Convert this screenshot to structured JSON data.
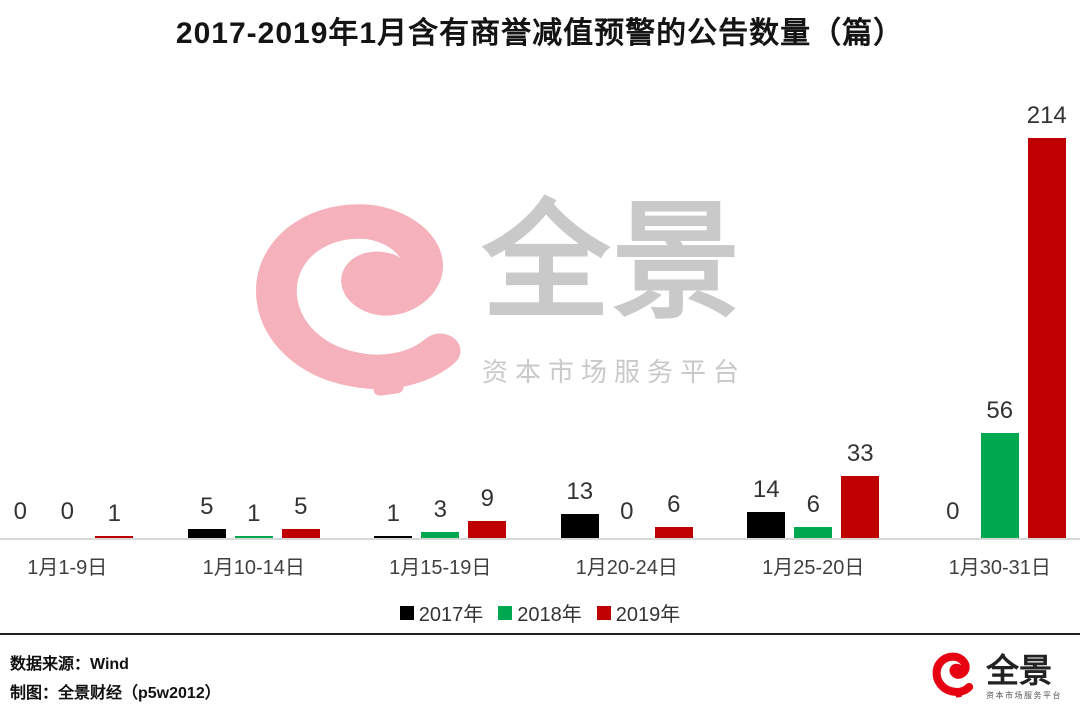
{
  "title": "2017-2019年1月含有商誉减值预警的公告数量（篇）",
  "watermark": {
    "brand": "全景",
    "tagline": "资本市场服务平台"
  },
  "chart_data": {
    "type": "bar",
    "title": "2017-2019年1月含有商誉减值预警的公告数量（篇）",
    "categories": [
      "1月1-9日",
      "1月10-14日",
      "1月15-19日",
      "1月20-24日",
      "1月25-20日",
      "1月30-31日"
    ],
    "series": [
      {
        "name": "2017年",
        "color": "#000000",
        "values": [
          0,
          5,
          1,
          13,
          14,
          0
        ]
      },
      {
        "name": "2018年",
        "color": "#00A850",
        "values": [
          0,
          1,
          3,
          0,
          6,
          56
        ]
      },
      {
        "name": "2019年",
        "color": "#C00000",
        "values": [
          1,
          5,
          9,
          6,
          33,
          214
        ]
      }
    ],
    "xlabel": "",
    "ylabel": "",
    "ylim": [
      0,
      240
    ],
    "grid": false,
    "axis_shown": "x-baseline-only",
    "legend_position": "bottom",
    "value_labels_shown": true
  },
  "footer": {
    "source": "数据来源：Wind",
    "credit": "制图：全景财经（p5w2012）",
    "logo": {
      "brand": "全景",
      "tagline": "资本市场服务平台"
    }
  },
  "colors": {
    "series_2017": "#000000",
    "series_2018": "#00A850",
    "series_2019": "#C00000",
    "value_label": "#333333",
    "watermark_pink": "#F5B2BC",
    "watermark_gray": "#C9C9C9",
    "logo_red": "#E60012",
    "axis_line": "#D8D8D8",
    "divider": "#1F1F1F"
  }
}
